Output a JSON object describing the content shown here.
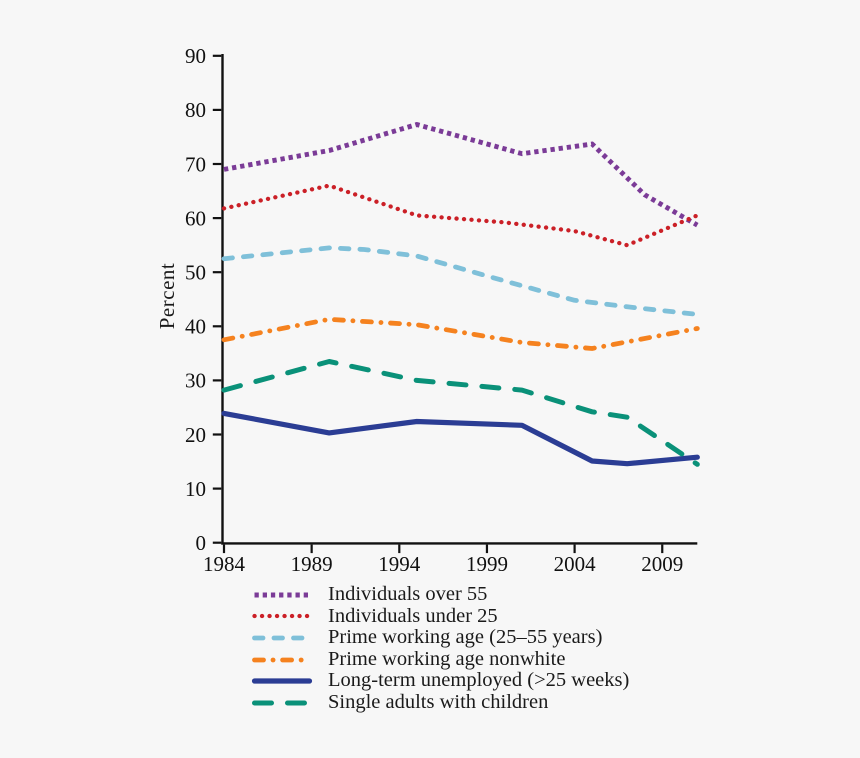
{
  "background": "#f7f7f7",
  "axis_color": "#111111",
  "text_color": "#1a1a1a",
  "chart_data": {
    "type": "line",
    "title": "",
    "xlabel": "",
    "ylabel": "Percent",
    "ylim": [
      0,
      90
    ],
    "xlim": [
      1984,
      2011
    ],
    "yticks": [
      0,
      10,
      20,
      30,
      40,
      50,
      60,
      70,
      80,
      90
    ],
    "xticks": [
      1984,
      1989,
      1994,
      1999,
      2004,
      2009
    ],
    "grid": false,
    "legend_position": "bottom",
    "series": [
      {
        "name": "Individuals over 55",
        "color": "#7b3b97",
        "style": "square-dot",
        "points": [
          [
            1984,
            69
          ],
          [
            1990,
            72.5
          ],
          [
            1995,
            77.3
          ],
          [
            2001,
            71.9
          ],
          [
            2005,
            73.7
          ],
          [
            2008,
            64.3
          ],
          [
            2011,
            58.7
          ]
        ]
      },
      {
        "name": "Individuals under 25",
        "color": "#cb2027",
        "style": "round-dot",
        "points": [
          [
            1984,
            61.8
          ],
          [
            1990,
            66
          ],
          [
            1995,
            60.5
          ],
          [
            2000,
            59.2
          ],
          [
            2004,
            57.6
          ],
          [
            2007,
            55
          ],
          [
            2011,
            60.5
          ]
        ]
      },
      {
        "name": "Prime working age (25–55 years)",
        "color": "#7fc0d9",
        "style": "dash",
        "points": [
          [
            1984,
            52.5
          ],
          [
            1990,
            54.5
          ],
          [
            1992,
            54.2
          ],
          [
            1995,
            53
          ],
          [
            2000,
            48.4
          ],
          [
            2004,
            44.8
          ],
          [
            2007,
            43.6
          ],
          [
            2011,
            42.2
          ]
        ]
      },
      {
        "name": "Prime working age nonwhite",
        "color": "#f5821f",
        "style": "dash-dot",
        "points": [
          [
            1984,
            37.5
          ],
          [
            1990,
            41.3
          ],
          [
            1995,
            40.3
          ],
          [
            2001,
            37
          ],
          [
            2005,
            35.9
          ],
          [
            2011,
            39.6
          ]
        ]
      },
      {
        "name": "Long-term unemployed (>25 weeks)",
        "color": "#2b3d94",
        "style": "solid",
        "points": [
          [
            1984,
            23.9
          ],
          [
            1990,
            20.3
          ],
          [
            1995,
            22.4
          ],
          [
            2001,
            21.7
          ],
          [
            2005,
            15.1
          ],
          [
            2007,
            14.6
          ],
          [
            2011,
            15.8
          ]
        ]
      },
      {
        "name": "Single adults with children",
        "color": "#0a9179",
        "style": "long-dash",
        "points": [
          [
            1984,
            28.2
          ],
          [
            1990,
            33.5
          ],
          [
            1995,
            30
          ],
          [
            2001,
            28.2
          ],
          [
            2005,
            24.2
          ],
          [
            2007,
            23.2
          ],
          [
            2011,
            14.5
          ]
        ]
      }
    ]
  }
}
